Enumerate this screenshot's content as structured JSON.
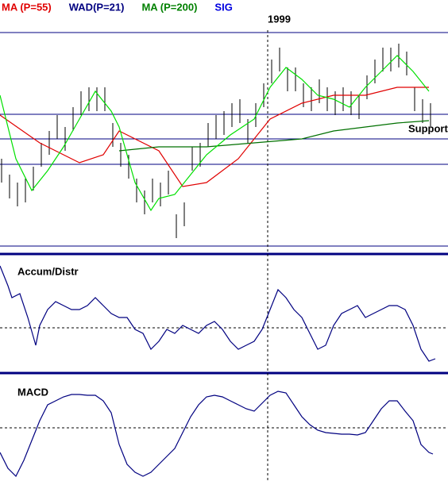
{
  "chart_data": [
    {
      "type": "stock",
      "legend": [
        {
          "label": "MA (P=55)",
          "color": "#e00000"
        },
        {
          "label": "WAD(P=21)",
          "color": "#000080"
        },
        {
          "label": "MA (P=200)",
          "color": "#008000"
        },
        {
          "label": "SIG",
          "color": "#0000e0"
        }
      ],
      "annotations": [
        "1999",
        "Support"
      ],
      "bar_color": "#000000",
      "xlim": [
        0,
        56.4
      ],
      "ylim": [
        0,
        269
      ],
      "x": [
        0,
        1,
        2,
        3,
        4,
        5,
        6,
        7,
        8,
        9,
        10,
        11,
        12,
        13,
        14,
        15,
        16,
        17,
        18,
        19,
        20,
        21,
        22,
        23,
        24,
        25,
        26,
        27,
        28,
        29,
        30,
        31,
        32,
        33,
        34,
        35,
        36,
        37,
        38,
        39,
        40,
        41,
        42,
        43,
        44,
        45,
        46,
        47,
        48,
        49,
        50,
        51,
        52,
        53,
        54
      ],
      "high": [
        110,
        90,
        80,
        85,
        100,
        130,
        145,
        165,
        150,
        175,
        195,
        200,
        200,
        200,
        155,
        130,
        115,
        85,
        70,
        85,
        80,
        95,
        40,
        55,
        125,
        130,
        155,
        165,
        170,
        180,
        185,
        160,
        180,
        205,
        235,
        250,
        225,
        225,
        205,
        200,
        210,
        200,
        195,
        200,
        195,
        190,
        215,
        235,
        250,
        250,
        255,
        245,
        200,
        185,
        180
      ],
      "low": [
        80,
        60,
        50,
        55,
        70,
        100,
        115,
        135,
        120,
        145,
        165,
        170,
        170,
        170,
        125,
        100,
        85,
        55,
        40,
        55,
        50,
        65,
        10,
        25,
        95,
        100,
        125,
        135,
        140,
        150,
        155,
        130,
        150,
        175,
        205,
        220,
        195,
        195,
        175,
        170,
        180,
        170,
        165,
        170,
        165,
        160,
        185,
        205,
        220,
        220,
        225,
        215,
        170,
        155,
        150
      ],
      "lines": [
        {
          "color": "#e00000",
          "x": [
            0,
            5,
            10,
            13,
            15,
            20,
            23,
            26,
            30,
            34,
            38,
            42,
            46,
            50,
            54
          ],
          "values": [
            165,
            130,
            105,
            115,
            145,
            120,
            75,
            80,
            110,
            160,
            180,
            190,
            190,
            200,
            200
          ]
        },
        {
          "color": "#007000",
          "x": [
            15,
            20,
            26,
            32,
            38,
            42,
            46,
            50,
            54
          ],
          "values": [
            120,
            125,
            125,
            130,
            135,
            145,
            150,
            155,
            158
          ]
        },
        {
          "color": "#00e000",
          "x": [
            0,
            2,
            4,
            6,
            8,
            10,
            12,
            14,
            15,
            17,
            19,
            20,
            22,
            24,
            26,
            29,
            32,
            34,
            36,
            38,
            40,
            42,
            44,
            46,
            48,
            50,
            52,
            54
          ],
          "values": [
            190,
            110,
            70,
            95,
            125,
            160,
            195,
            170,
            150,
            80,
            45,
            60,
            65,
            90,
            115,
            140,
            160,
            200,
            225,
            210,
            190,
            185,
            175,
            200,
            220,
            240,
            220,
            195
          ]
        }
      ]
    },
    {
      "type": "line",
      "title": "Accum/Distr",
      "color": "#000080",
      "xlim": [
        0,
        56.4
      ],
      "ylim": [
        0,
        146
      ],
      "x": [
        0,
        1,
        1.5,
        2.5,
        3.5,
        4.5,
        5,
        6,
        7,
        8,
        9,
        10,
        11,
        12,
        13,
        14,
        15,
        16,
        17,
        18,
        19,
        20,
        21,
        22,
        23,
        24,
        25,
        26,
        27,
        28,
        29,
        30,
        31,
        32,
        33,
        34,
        35,
        36,
        37,
        38,
        39,
        40,
        41,
        42,
        43,
        44,
        45,
        46,
        47,
        48,
        49,
        50,
        51,
        52,
        53,
        54,
        54.8
      ],
      "values": [
        133,
        108,
        93,
        98,
        68,
        33,
        58,
        78,
        88,
        83,
        78,
        78,
        83,
        93,
        83,
        73,
        68,
        68,
        53,
        48,
        28,
        38,
        53,
        48,
        58,
        53,
        48,
        58,
        63,
        53,
        38,
        28,
        33,
        38,
        53,
        78,
        103,
        93,
        78,
        68,
        48,
        28,
        33,
        58,
        73,
        78,
        83,
        68,
        73,
        78,
        83,
        83,
        78,
        58,
        28,
        13,
        16
      ]
    },
    {
      "type": "line",
      "title": "MACD",
      "color": "#000080",
      "xlim": [
        0,
        56.4
      ],
      "ylim": [
        0,
        131
      ],
      "x": [
        0,
        1,
        2,
        3,
        4,
        5,
        6,
        7,
        8,
        9,
        10,
        11,
        12,
        13,
        14,
        15,
        16,
        17,
        18,
        19,
        20,
        21,
        22,
        23,
        24,
        25,
        26,
        27,
        28,
        29,
        30,
        31,
        32,
        33,
        34,
        35,
        36,
        37,
        38,
        39,
        40,
        41,
        42,
        43,
        44,
        45,
        46,
        47,
        48,
        49,
        50,
        51,
        52,
        53,
        54,
        54.5
      ],
      "values": [
        36,
        16,
        6,
        26,
        51,
        76,
        96,
        101,
        106,
        109,
        109,
        108,
        108,
        101,
        86,
        46,
        21,
        11,
        6,
        11,
        21,
        31,
        41,
        61,
        81,
        96,
        106,
        108,
        106,
        101,
        96,
        91,
        88,
        98,
        108,
        113,
        111,
        96,
        81,
        71,
        64,
        61,
        60,
        59,
        59,
        58,
        61,
        76,
        91,
        101,
        101,
        88,
        76,
        46,
        36,
        34
      ]
    }
  ]
}
